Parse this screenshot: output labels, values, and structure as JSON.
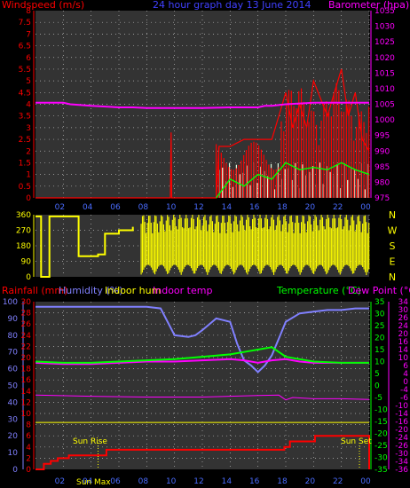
{
  "titles": {
    "top_left": "Windspeed (m/s)",
    "top_center": "24 hour graph day  13 June 2014",
    "top_right": "Barometer (hpa)",
    "bottom_rain": "Rainfall (mm)",
    "bottom_hum": "Humidity (%)",
    "bottom_indoor_hum": "Indoor hum",
    "bottom_indoor_temp": "Indoor temp",
    "bottom_temp": "Temperature (°C)",
    "bottom_dew": "Dew Point (°C)"
  },
  "colors": {
    "wind": "#ff0000",
    "gust": "#00ff00",
    "baro": "#ff00ff",
    "winddir": "#ffff00",
    "rain": "#ff0000",
    "humidity": "#8080ff",
    "indoor_hum": "#ffff00",
    "indoor_temp": "#ff00ff",
    "temperature": "#00ff00",
    "dewpoint": "#ff00ff",
    "wind_bars": "#e0ffe0"
  },
  "x_axis": {
    "ticks": [
      "02",
      "04",
      "06",
      "08",
      "10",
      "12",
      "14",
      "16",
      "18",
      "20",
      "22",
      "00"
    ]
  },
  "annotations": {
    "sunrise": "Sun Rise",
    "sunset": "Sun Set",
    "sunrise_overlap": "Sun Max"
  },
  "chart_data": [
    {
      "type": "line",
      "name": "wind_baro",
      "left_axis": {
        "label": "Windspeed (m/s)",
        "ticks": [
          "0",
          "0.5",
          "1",
          "1.5",
          "2",
          "2.5",
          "3",
          "3.5",
          "4",
          "4.5",
          "5",
          "5.5",
          "6",
          "6.5",
          "7",
          "7.5",
          "8"
        ],
        "ylim": [
          0,
          8
        ]
      },
      "right_axis": {
        "label": "Barometer (hpa)",
        "ticks": [
          "975",
          "980",
          "985",
          "990",
          "995",
          "1000",
          "1005",
          "1010",
          "1015",
          "1020",
          "1025",
          "1030",
          "1035"
        ],
        "ylim": [
          975,
          1035
        ]
      },
      "x_hours": [
        0,
        24
      ],
      "series": [
        {
          "name": "Barometer",
          "axis": "right",
          "x": [
            0,
            2,
            2.5,
            4,
            6,
            7,
            8,
            10,
            12,
            14,
            16,
            16.5,
            17,
            18,
            20,
            22,
            24
          ],
          "y": [
            1005.5,
            1005.5,
            1005.0,
            1004.5,
            1004.0,
            1004.0,
            1003.8,
            1003.8,
            1003.8,
            1004.0,
            1004.0,
            1004.5,
            1004.5,
            1005.0,
            1005.5,
            1005.5,
            1005.5
          ]
        },
        {
          "name": "Windspeed",
          "axis": "left",
          "x": [
            0,
            9.7,
            9.75,
            9.8,
            13,
            13.2,
            14,
            15,
            16,
            17,
            17.5,
            18,
            18.5,
            19,
            19.5,
            20,
            21,
            21.5,
            22,
            22.5,
            23,
            23.5,
            24
          ],
          "y": [
            0,
            0,
            2.8,
            0,
            0,
            2.2,
            2.2,
            2.5,
            2.5,
            2.5,
            3.5,
            4.5,
            3.0,
            4.0,
            3.0,
            5.0,
            3.5,
            4.5,
            5.5,
            3.5,
            4.5,
            2.5,
            2.0
          ]
        },
        {
          "name": "Gust",
          "axis": "left",
          "x": [
            13,
            14,
            15,
            16,
            17,
            18,
            19,
            20,
            21,
            22,
            23,
            24
          ],
          "y": [
            0,
            0.8,
            0.5,
            1.0,
            0.8,
            1.5,
            1.2,
            1.3,
            1.2,
            1.5,
            1.2,
            1.0
          ]
        }
      ]
    },
    {
      "type": "line",
      "name": "wind_direction",
      "left_axis": {
        "ticks": [
          "0",
          "90",
          "180",
          "270",
          "360"
        ],
        "ylim": [
          0,
          360
        ]
      },
      "right_labels": [
        "N",
        "W",
        "S",
        "E",
        "N"
      ],
      "x_hours": [
        0,
        24
      ],
      "series": [
        {
          "name": "Wind direction",
          "x": [
            0,
            0.3,
            0.4,
            1.0,
            2.5,
            3.0,
            3.1,
            4.0,
            4.5,
            5.0,
            5.5,
            6.0,
            6.5,
            7.0,
            7.5,
            7.6,
            24
          ],
          "y": [
            350,
            350,
            0,
            350,
            350,
            350,
            120,
            120,
            130,
            250,
            250,
            270,
            270,
            290,
            300,
            340,
            340
          ]
        }
      ]
    },
    {
      "type": "line",
      "name": "temp_hum_rain",
      "left_axis_rain": {
        "label": "Rainfall (mm)",
        "ticks": [
          "0",
          "2",
          "4",
          "6",
          "8",
          "10",
          "12",
          "14",
          "16",
          "18",
          "20",
          "22",
          "24",
          "26",
          "28",
          "30"
        ],
        "ylim": [
          0,
          30
        ]
      },
      "left_axis_hum": {
        "label": "Humidity (%)",
        "ticks": [
          "0",
          "10",
          "20",
          "30",
          "40",
          "50",
          "60",
          "70",
          "80",
          "90",
          "100"
        ],
        "ylim": [
          0,
          100
        ]
      },
      "right_axis_temp": {
        "label": "Temperature (°C)",
        "ticks": [
          "-35",
          "-30",
          "-25",
          "-20",
          "-15",
          "-10",
          "-5",
          "0",
          "5",
          "10",
          "15",
          "20",
          "25",
          "30",
          "35"
        ],
        "ylim": [
          -35,
          35
        ]
      },
      "right_axis_dew": {
        "label": "Dew Point (°C)",
        "ticks": [
          "-36",
          "-34",
          "-30",
          "-26",
          "-24",
          "-20",
          "-16",
          "-14",
          "-10",
          "-6",
          "-4",
          "0",
          "4",
          "6",
          "10",
          "14",
          "16",
          "20",
          "24",
          "26",
          "30",
          "34"
        ]
      },
      "x_hours": [
        0,
        24
      ],
      "series": [
        {
          "name": "Humidity",
          "axis": "hum",
          "x": [
            0,
            8,
            9,
            10,
            11,
            11.5,
            12,
            13,
            14,
            14.5,
            15,
            15.5,
            16,
            16.5,
            17,
            17.5,
            18,
            19,
            20,
            21,
            22,
            23,
            24
          ],
          "y": [
            97,
            97,
            96,
            80,
            79,
            80,
            83,
            90,
            88,
            75,
            65,
            62,
            58,
            62,
            68,
            78,
            88,
            93,
            94,
            95,
            95,
            96,
            96
          ]
        },
        {
          "name": "Temperature",
          "axis": "temp",
          "x": [
            0,
            2,
            4,
            6,
            8,
            10,
            12,
            14,
            15,
            16,
            17,
            17.5,
            18,
            19,
            20,
            22,
            24
          ],
          "y": [
            10,
            9.5,
            9.5,
            10,
            10.5,
            11,
            12,
            13,
            14,
            15,
            16,
            14,
            12,
            11,
            10,
            9.5,
            9.5
          ]
        },
        {
          "name": "Dew Point",
          "axis": "temp",
          "x": [
            0,
            2,
            4,
            6,
            8,
            10,
            12,
            14,
            15,
            16,
            17,
            18,
            19,
            20,
            22,
            24
          ],
          "y": [
            9.5,
            9,
            9,
            9.5,
            10,
            10,
            10.5,
            11,
            10.5,
            9.5,
            10.5,
            11,
            10,
            9.5,
            9.5,
            9.5
          ]
        },
        {
          "name": "Indoor hum",
          "axis": "hum",
          "x": [
            0,
            24
          ],
          "y": [
            28,
            28
          ]
        },
        {
          "name": "Indoor temp",
          "axis": "temp",
          "x": [
            0,
            4,
            8,
            12,
            16,
            17.5,
            18,
            18.5,
            20,
            22,
            24
          ],
          "y": [
            -4,
            -4.5,
            -4.8,
            -4.8,
            -4.2,
            -4,
            -6,
            -5,
            -5.5,
            -5.5,
            -5.8
          ]
        },
        {
          "name": "Rainfall",
          "axis": "rain",
          "x": [
            0,
            0.5,
            0.6,
            1.0,
            1.1,
            1.5,
            1.6,
            2.3,
            2.4,
            5.0,
            5.1,
            17.8,
            17.9,
            18.2,
            18.3,
            20.0,
            20.1,
            23.9,
            24
          ],
          "y": [
            0,
            0,
            1,
            1,
            1.5,
            1.5,
            2,
            2,
            2.5,
            2.5,
            3.5,
            3.5,
            4,
            4,
            5,
            5,
            6,
            6,
            0
          ]
        }
      ]
    }
  ]
}
